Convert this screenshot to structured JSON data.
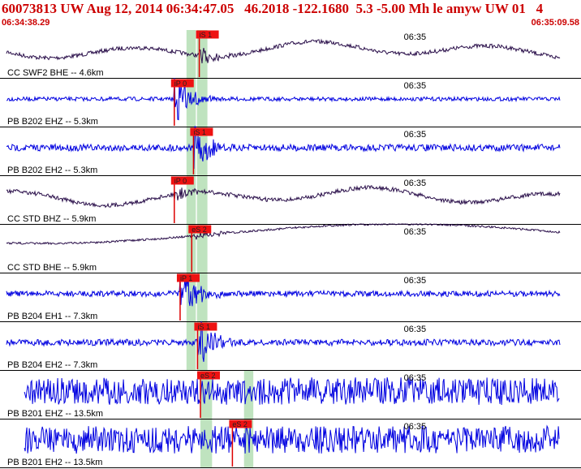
{
  "header": {
    "title": "60073813 UW Aug 12, 2014 06:34:47.05   46.2018 -122.1680  5.3 -5.00 Mh le amyw UW 01   4",
    "start_time": "06:34:38.29",
    "end_time": "06:35:09.58"
  },
  "colors": {
    "header_text": "#cc0000",
    "trace_dark": "#2a0f4a",
    "trace_blue": "#0000e0",
    "pick_box": "#ee1111",
    "pick_line": "#dd0000",
    "window": "#bfe3bf",
    "label_text": "#000000"
  },
  "channels": [
    {
      "label": "CC SWF2 BHE -- 4.6km",
      "minute_mark": "06:35",
      "picks": [
        {
          "text": "iS 1",
          "t": 0.343
        }
      ],
      "windows": [
        0.321,
        0.357
      ],
      "color": "dark",
      "style": "broadband",
      "amp": 1.0,
      "trace_start": 0.0
    },
    {
      "label": "PB B202 EHZ -- 5.3km",
      "minute_mark": "06:35",
      "picks": [
        {
          "text": "iP 0",
          "t": 0.3
        }
      ],
      "windows": [
        0.321,
        0.357
      ],
      "color": "blue",
      "style": "shortperiod",
      "amp": 0.35,
      "trace_start": 0.0
    },
    {
      "label": "PB B202 EH2 -- 5.3km",
      "minute_mark": "06:35",
      "picks": [
        {
          "text": "iS 1",
          "t": 0.333
        }
      ],
      "windows": [
        0.321,
        0.357
      ],
      "color": "blue",
      "style": "shortperiod",
      "amp": 0.6,
      "trace_start": 0.0
    },
    {
      "label": "CC STD BHZ -- 5.9km",
      "minute_mark": "06:35",
      "picks": [
        {
          "text": "iP 0",
          "t": 0.3
        }
      ],
      "windows": [
        0.321,
        0.357
      ],
      "color": "dark",
      "style": "broadband",
      "amp": 1.0,
      "trace_start": 0.0
    },
    {
      "label": "CC STD BHE -- 5.9km",
      "minute_mark": "06:35",
      "picks": [
        {
          "text": "eS 2",
          "t": 0.33
        }
      ],
      "windows": [
        0.321,
        0.357
      ],
      "color": "dark",
      "style": "broadband2",
      "amp": 1.0,
      "trace_start": 0.0
    },
    {
      "label": "PB B204 EH1 -- 7.3km",
      "minute_mark": "06:35",
      "picks": [
        {
          "text": "iP 1",
          "t": 0.31
        }
      ],
      "windows": [
        0.321,
        0.357
      ],
      "color": "blue",
      "style": "shortperiod",
      "amp": 0.5,
      "trace_start": 0.0
    },
    {
      "label": "PB B204 EH2 -- 7.3km",
      "minute_mark": "06:35",
      "picks": [
        {
          "text": "iS 1",
          "t": 0.34
        }
      ],
      "windows": [
        0.321,
        0.357
      ],
      "color": "blue",
      "style": "shortperiod",
      "amp": 0.55,
      "trace_start": 0.0
    },
    {
      "label": "PB B201 EHZ -- 13.5km",
      "minute_mark": "06:35",
      "picks": [
        {
          "text": "eS 2",
          "t": 0.345
        }
      ],
      "windows": [
        0.345,
        0.365,
        0.42,
        0.436
      ],
      "color": "blue",
      "style": "noisy",
      "amp": 1.0,
      "trace_start": 0.042
    },
    {
      "label": "PB B201 EH2 -- 13.5km",
      "minute_mark": "06:35",
      "picks": [
        {
          "text": "eS 2",
          "t": 0.4
        }
      ],
      "windows": [
        0.345,
        0.365,
        0.42,
        0.436
      ],
      "color": "blue",
      "style": "noisy",
      "amp": 1.0,
      "trace_start": 0.042
    }
  ]
}
